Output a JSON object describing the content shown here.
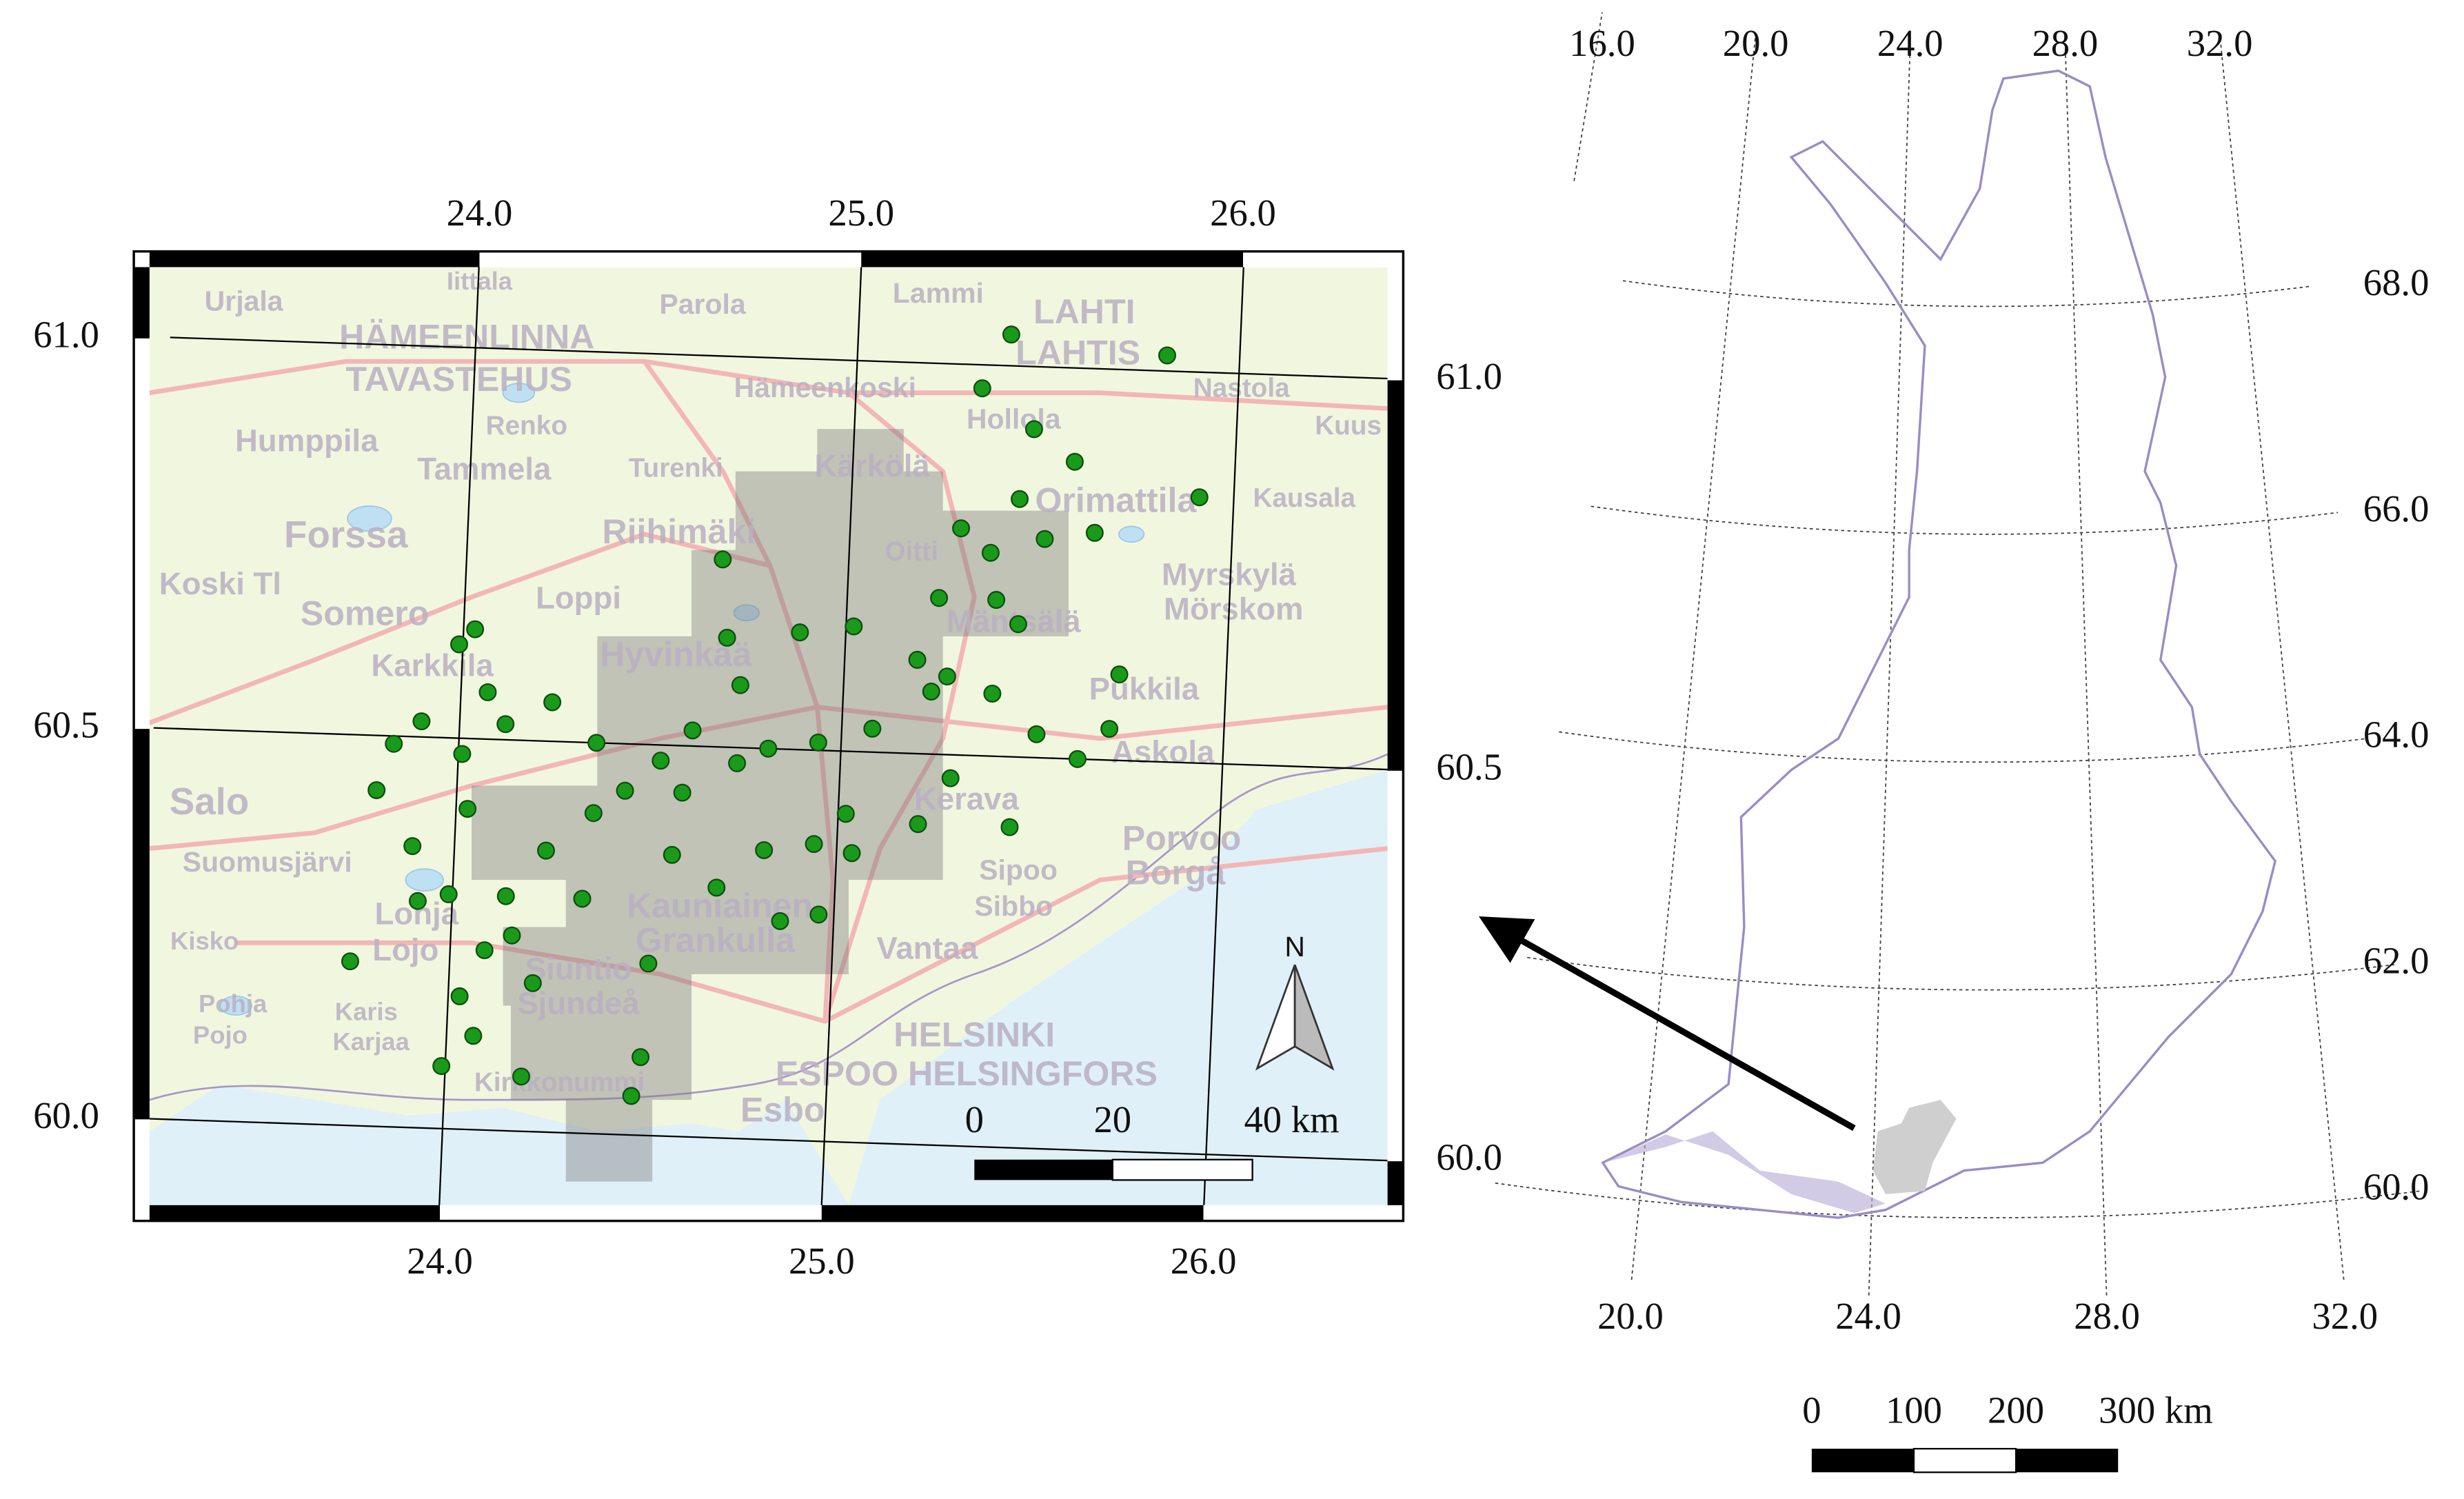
{
  "left_map": {
    "lon_ticks": [
      {
        "value": 24,
        "label": "24.0"
      },
      {
        "value": 25,
        "label": "25.0"
      },
      {
        "value": 26,
        "label": "26.0"
      }
    ],
    "lat_ticks": [
      {
        "value": 60,
        "label": "60.0"
      },
      {
        "value": 60.5,
        "label": "60.5"
      },
      {
        "value": 61,
        "label": "61.0"
      }
    ],
    "sites": [
      [
        25.4,
        61.04
      ],
      [
        25.81,
        61.02
      ],
      [
        25.33,
        60.97
      ],
      [
        25.47,
        60.92
      ],
      [
        25.58,
        60.88
      ],
      [
        25.91,
        60.84
      ],
      [
        25.44,
        60.83
      ],
      [
        25.29,
        60.79
      ],
      [
        25.51,
        60.78
      ],
      [
        25.64,
        60.79
      ],
      [
        25.37,
        60.76
      ],
      [
        25.24,
        60.7
      ],
      [
        25.39,
        60.7
      ],
      [
        25.45,
        60.67
      ],
      [
        24.67,
        60.74
      ],
      [
        24.03,
        60.64
      ],
      [
        23.99,
        60.62
      ],
      [
        24.07,
        60.56
      ],
      [
        23.9,
        60.52
      ],
      [
        23.83,
        60.49
      ],
      [
        23.79,
        60.43
      ],
      [
        24.01,
        60.48
      ],
      [
        24.12,
        60.52
      ],
      [
        24.24,
        60.55
      ],
      [
        24.36,
        60.5
      ],
      [
        24.53,
        60.48
      ],
      [
        24.59,
        60.44
      ],
      [
        24.61,
        60.52
      ],
      [
        24.69,
        60.64
      ],
      [
        24.73,
        60.58
      ],
      [
        24.88,
        60.65
      ],
      [
        25.02,
        60.66
      ],
      [
        25.19,
        60.62
      ],
      [
        25.23,
        60.58
      ],
      [
        25.39,
        60.58
      ],
      [
        25.72,
        60.61
      ],
      [
        25.7,
        60.54
      ],
      [
        25.62,
        60.5
      ],
      [
        25.51,
        60.53
      ],
      [
        25.29,
        60.47
      ],
      [
        25.08,
        60.53
      ],
      [
        24.94,
        60.51
      ],
      [
        24.81,
        60.5
      ],
      [
        24.73,
        60.48
      ],
      [
        24.44,
        60.44
      ],
      [
        24.36,
        60.41
      ],
      [
        24.24,
        60.36
      ],
      [
        24.03,
        60.41
      ],
      [
        23.89,
        60.36
      ],
      [
        23.91,
        60.29
      ],
      [
        23.99,
        60.3
      ],
      [
        24.14,
        60.3
      ],
      [
        24.34,
        60.3
      ],
      [
        24.57,
        60.36
      ],
      [
        24.69,
        60.32
      ],
      [
        24.81,
        60.37
      ],
      [
        24.94,
        60.38
      ],
      [
        25.04,
        60.37
      ],
      [
        25.21,
        60.41
      ],
      [
        25.45,
        60.41
      ],
      [
        24.96,
        60.29
      ],
      [
        24.86,
        60.28
      ],
      [
        23.74,
        60.21
      ],
      [
        24.09,
        60.23
      ],
      [
        24.16,
        60.25
      ],
      [
        24.22,
        60.19
      ],
      [
        24.03,
        60.17
      ],
      [
        24.07,
        60.12
      ],
      [
        23.99,
        60.08
      ],
      [
        24.2,
        60.07
      ],
      [
        24.51,
        60.1
      ],
      [
        24.52,
        60.22
      ],
      [
        24.49,
        60.05
      ],
      [
        25.02,
        60.42
      ],
      [
        25.27,
        60.6
      ]
    ],
    "scale_bar": [
      "0",
      "20",
      "40 km"
    ],
    "north": "N",
    "place_names": [
      "Urjala",
      "Iittala",
      "Parola",
      "Lammi",
      "LAHTI",
      "LAHTIS",
      "HÄMEENLINNA",
      "TAVASTEHUS",
      "Hämeenkoski",
      "Nastola",
      "Kuus",
      "Humppila",
      "Renko",
      "Hollola",
      "Tammela",
      "Turenki",
      "Kärkölä",
      "Orimattila",
      "Kausala",
      "Forssa",
      "Riihimäki",
      "Oitti",
      "Myrskylä",
      "Mörskom",
      "Somero",
      "Loppi",
      "Koski Tl",
      "Karkkila",
      "Hyvinkää",
      "Mäntsälä",
      "Pukkila",
      "Askola",
      "Salo",
      "Kerava",
      "Porvoo",
      "Borgå",
      "Sipoo",
      "Sibbo",
      "Suomusjärvi",
      "Lohja",
      "Lojo",
      "Kisko",
      "Siuntio",
      "Sjundeå",
      "Kauniainen",
      "Grankulla",
      "Vantaa",
      "HELSINKI",
      "ESPOO HELSINGFORS",
      "Esbo",
      "Pohja",
      "Pojo",
      "Karis",
      "Karjaa",
      "Kirkkonummi"
    ]
  },
  "right_map": {
    "lon_ticks_top": [
      {
        "value": 16,
        "label": "16.0"
      },
      {
        "value": 20,
        "label": "20.0"
      },
      {
        "value": 24,
        "label": "24.0"
      },
      {
        "value": 28,
        "label": "28.0"
      },
      {
        "value": 32,
        "label": "32.0"
      }
    ],
    "lon_ticks_bottom": [
      {
        "value": 20,
        "label": "20.0"
      },
      {
        "value": 24,
        "label": "24.0"
      },
      {
        "value": 28,
        "label": "28.0"
      },
      {
        "value": 32,
        "label": "32.0"
      }
    ],
    "lat_ticks": [
      {
        "value": 68,
        "label": "68.0"
      },
      {
        "value": 66,
        "label": "66.0"
      },
      {
        "value": 64,
        "label": "64.0"
      },
      {
        "value": 62,
        "label": "62.0"
      },
      {
        "value": 60,
        "label": "60.0"
      }
    ],
    "scale_bar": [
      "0",
      "100",
      "200",
      "300 km"
    ]
  }
}
